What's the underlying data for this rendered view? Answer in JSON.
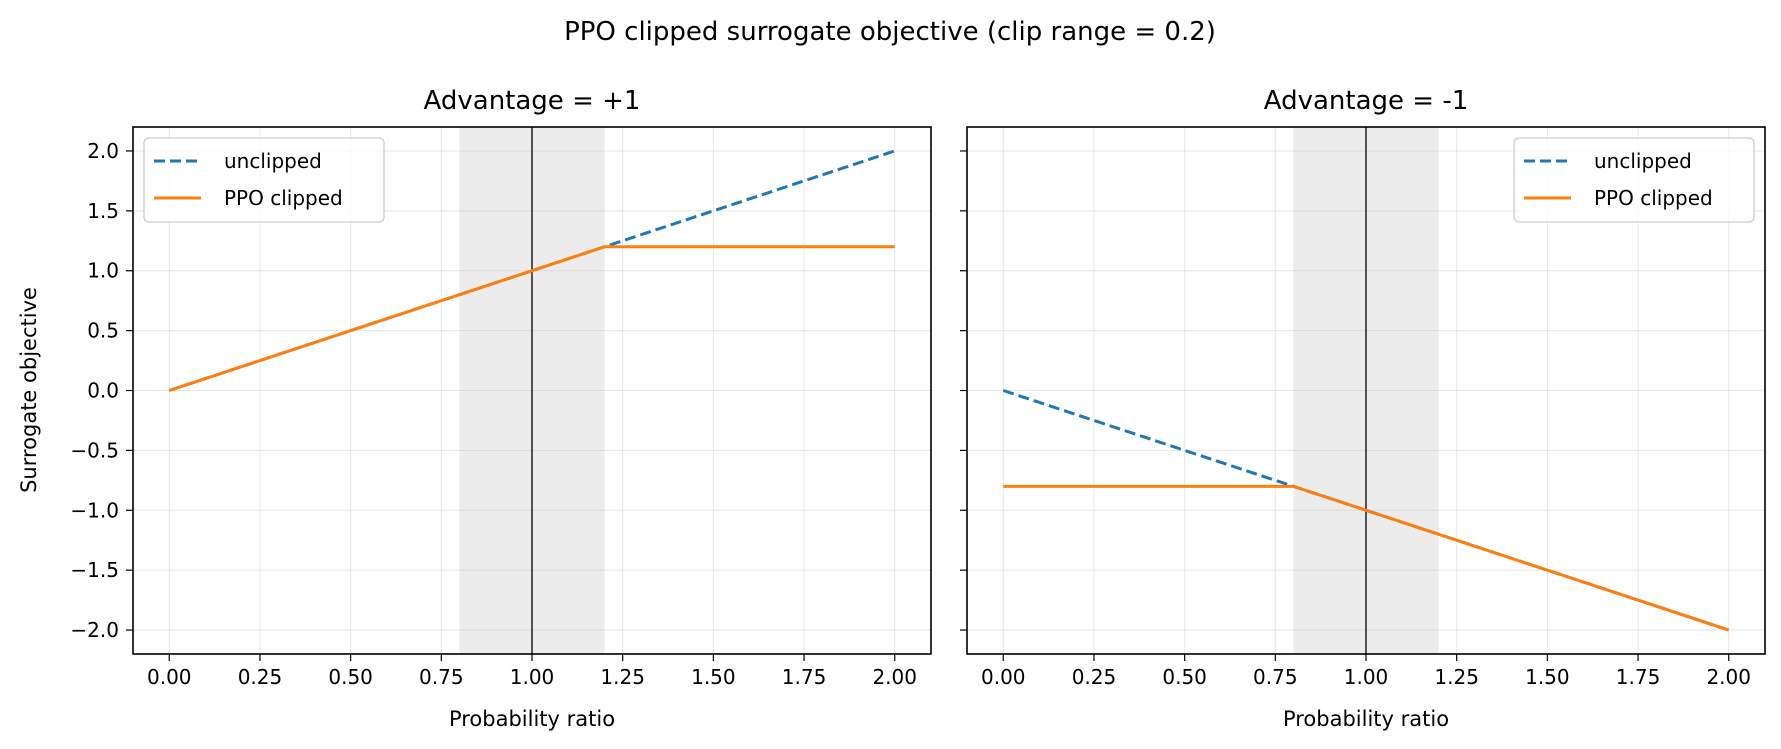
{
  "figure": {
    "suptitle": "PPO clipped surrogate objective (clip range = 0.2)"
  },
  "chart_data": [
    {
      "type": "line",
      "title": "Advantage = +1",
      "xlabel": "Probability ratio",
      "ylabel": "Surrogate objective",
      "xlim": [
        -0.1,
        2.1
      ],
      "ylim": [
        -2.2,
        2.2
      ],
      "xticks": [
        0.0,
        0.25,
        0.5,
        0.75,
        1.0,
        1.25,
        1.5,
        1.75,
        2.0
      ],
      "xtick_labels": [
        "0.00",
        "0.25",
        "0.50",
        "0.75",
        "1.00",
        "1.25",
        "1.50",
        "1.75",
        "2.00"
      ],
      "yticks": [
        -2.0,
        -1.5,
        -1.0,
        -0.5,
        0.0,
        0.5,
        1.0,
        1.5,
        2.0
      ],
      "ytick_labels": [
        "−2.0",
        "−1.5",
        "−1.0",
        "−0.5",
        "0.0",
        "0.5",
        "1.0",
        "1.5",
        "2.0"
      ],
      "grid": true,
      "legend": "upper left",
      "shaded_band": [
        0.8,
        1.2
      ],
      "vline": 1.0,
      "series": [
        {
          "name": "unclipped",
          "style": "dashed",
          "color": "#1f77b4",
          "x": [
            0.0,
            2.0
          ],
          "y": [
            0.0,
            2.0
          ]
        },
        {
          "name": "PPO clipped",
          "style": "solid",
          "color": "#ff7f0e",
          "x": [
            0.0,
            1.2,
            2.0
          ],
          "y": [
            0.0,
            1.2,
            1.2
          ]
        }
      ]
    },
    {
      "type": "line",
      "title": "Advantage = -1",
      "xlabel": "Probability ratio",
      "xlim": [
        -0.1,
        2.1
      ],
      "ylim": [
        -2.2,
        2.2
      ],
      "xticks": [
        0.0,
        0.25,
        0.5,
        0.75,
        1.0,
        1.25,
        1.5,
        1.75,
        2.0
      ],
      "xtick_labels": [
        "0.00",
        "0.25",
        "0.50",
        "0.75",
        "1.00",
        "1.25",
        "1.50",
        "1.75",
        "2.00"
      ],
      "yticks": [
        -2.0,
        -1.5,
        -1.0,
        -0.5,
        0.0,
        0.5,
        1.0,
        1.5,
        2.0
      ],
      "grid": true,
      "legend": "upper right",
      "shaded_band": [
        0.8,
        1.2
      ],
      "vline": 1.0,
      "series": [
        {
          "name": "unclipped",
          "style": "dashed",
          "color": "#1f77b4",
          "x": [
            0.0,
            2.0
          ],
          "y": [
            0.0,
            -2.0
          ]
        },
        {
          "name": "PPO clipped",
          "style": "solid",
          "color": "#ff7f0e",
          "x": [
            0.0,
            0.8,
            2.0
          ],
          "y": [
            -0.8,
            -0.8,
            -2.0
          ]
        }
      ]
    }
  ]
}
